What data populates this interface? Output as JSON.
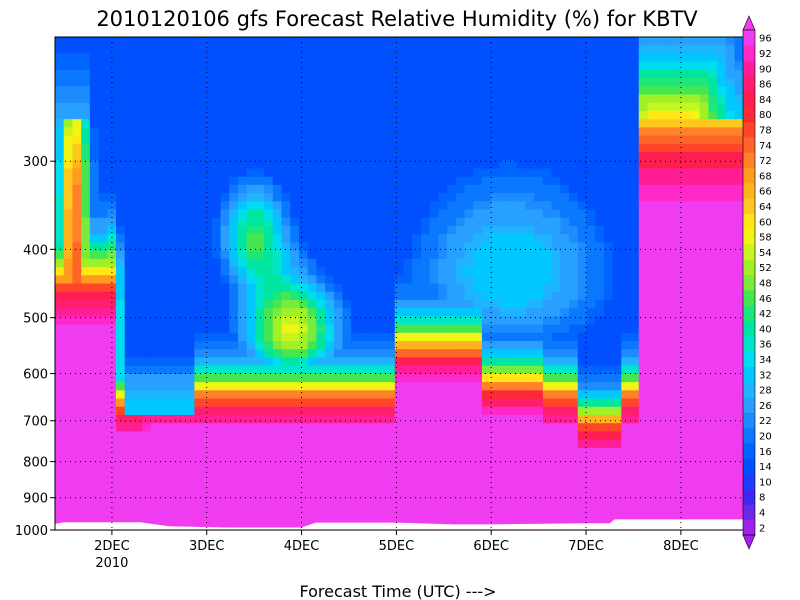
{
  "chart_data": {
    "type": "heatmap",
    "title": "2010120106 gfs Forecast Relative Humidity (%) for KBTV",
    "xlabel": "Forecast Time (UTC) --->",
    "ylabel": "",
    "x_tick_labels": [
      "2DEC",
      "3DEC",
      "4DEC",
      "5DEC",
      "6DEC",
      "7DEC",
      "8DEC"
    ],
    "x_tick_sublabel": "2010",
    "x_range_days": [
      1.4,
      8.75
    ],
    "y_tick_labels": [
      "300",
      "400",
      "500",
      "600",
      "700",
      "800",
      "900",
      "1000"
    ],
    "y_range_hPa": [
      200,
      1000
    ],
    "y_scale": "log-pressure",
    "colorbar_levels": [
      2,
      4,
      8,
      10,
      14,
      16,
      20,
      22,
      26,
      28,
      32,
      34,
      36,
      40,
      42,
      46,
      48,
      52,
      54,
      58,
      60,
      64,
      66,
      68,
      72,
      74,
      78,
      80,
      84,
      86,
      90,
      92,
      96
    ],
    "colorbar_colors": [
      "#a020f0",
      "#6a28e8",
      "#3c28f0",
      "#1e3cff",
      "#0050ff",
      "#0064ff",
      "#0a78ff",
      "#1e8cff",
      "#28a0ff",
      "#1eb4ff",
      "#00c8ff",
      "#00dcf0",
      "#00e6c8",
      "#00e6a0",
      "#1ee678",
      "#46e650",
      "#78eb3c",
      "#a0f028",
      "#c8f51e",
      "#f0f514",
      "#ffe614",
      "#ffc81e",
      "#ffb41e",
      "#ff9b1e",
      "#ff8228",
      "#ff6428",
      "#ff4628",
      "#ff2837",
      "#ff1e50",
      "#ff1e6e",
      "#ff1e96",
      "#ff28c8",
      "#f03cf0"
    ],
    "grid": true,
    "grid_style": "dotted",
    "surface_mask": true
  }
}
